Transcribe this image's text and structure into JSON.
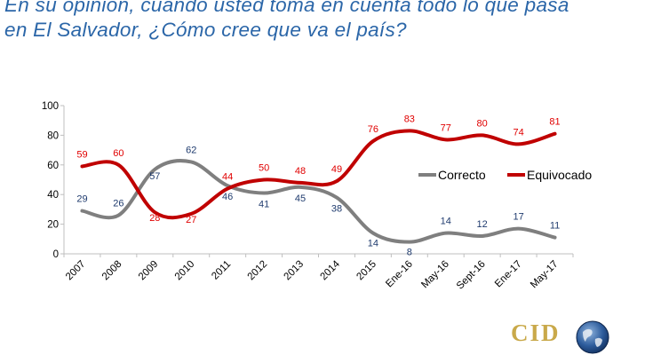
{
  "title": {
    "line1": "En su opinión, cuando usted toma en cuenta todo lo que pasa",
    "line2": "en El Salvador, ¿Cómo cree que va el país?"
  },
  "logo": {
    "text": "CID",
    "icon": "globe-icon"
  },
  "chart_data": {
    "type": "line",
    "x": [
      "2007",
      "2008",
      "2009",
      "2010",
      "2011",
      "2012",
      "2013",
      "2014",
      "2015",
      "Ene-16",
      "May-16",
      "Sept-16",
      "Ene-17",
      "May-17"
    ],
    "ylim": [
      0,
      100
    ],
    "yticks": [
      0,
      20,
      40,
      60,
      80,
      100
    ],
    "grid": false,
    "legend_position": "right",
    "series": [
      {
        "name": "Correcto",
        "color": "#7f7f7f",
        "label_color": "#1f3b6e",
        "values": [
          29,
          26,
          57,
          62,
          46,
          41,
          45,
          38,
          14,
          8,
          14,
          12,
          17,
          11
        ]
      },
      {
        "name": "Equivocado",
        "color": "#c00000",
        "label_color": "#e00000",
        "values": [
          59,
          60,
          28,
          27,
          44,
          50,
          48,
          49,
          76,
          83,
          77,
          80,
          74,
          81
        ]
      }
    ]
  }
}
